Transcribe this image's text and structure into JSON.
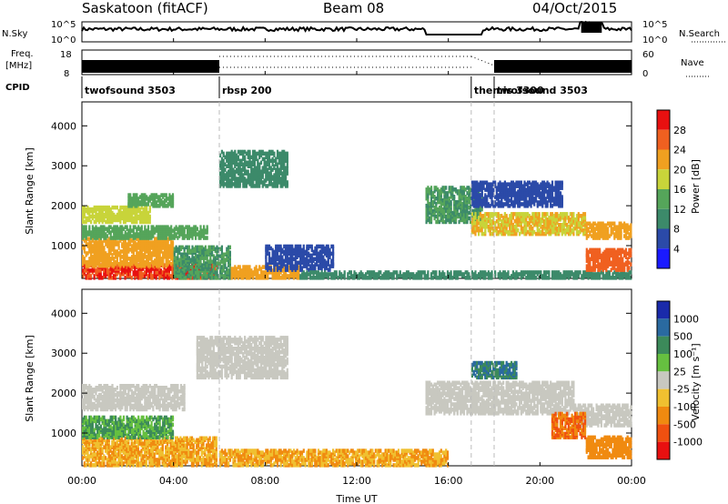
{
  "header": {
    "station": "Saskatoon (fitACF)",
    "beam": "Beam 08",
    "date": "04/Oct/2015"
  },
  "panels": {
    "nsky": {
      "label": "N.Sky",
      "right_label": "N.Search",
      "ticks_left": [
        "10^5",
        "10^0"
      ],
      "ticks_right": [
        "10^5",
        "10^0"
      ]
    },
    "freq": {
      "label_top": "Freq.",
      "label_bottom": "[MHz]",
      "right_label": "Nave",
      "ticks_left": [
        "18",
        "8"
      ],
      "ticks_right": [
        "60",
        "0"
      ]
    },
    "cpid": {
      "label": "CPID",
      "segments": [
        {
          "name": "twofsound 3503",
          "start_h": 0,
          "end_h": 6
        },
        {
          "name": "rbsp 200",
          "start_h": 6,
          "end_h": 17
        },
        {
          "name": "themis 3300",
          "start_h": 17,
          "end_h": 18
        },
        {
          "name": "twofsound 3503",
          "start_h": 18,
          "end_h": 24
        }
      ]
    }
  },
  "x_axis": {
    "label": "Time UT",
    "ticks": [
      "00:00",
      "04:00",
      "08:00",
      "12:00",
      "16:00",
      "20:00",
      "00:00"
    ]
  },
  "y_axis": {
    "label": "Slant Range [km]",
    "ticks": [
      "1000",
      "2000",
      "3000",
      "4000"
    ]
  },
  "power_scale": {
    "label": "Power [dB]",
    "ticks": [
      "4",
      "8",
      "12",
      "16",
      "20",
      "24",
      "28"
    ],
    "colors": [
      "#1a1aff",
      "#2b4aa8",
      "#3c8a6a",
      "#55a55a",
      "#c8d43a",
      "#f0a020",
      "#f06020",
      "#e81010"
    ]
  },
  "velocity_scale": {
    "label": "Velocity [m s⁻¹]",
    "ticks": [
      "1000",
      "500",
      "100",
      "25",
      "-25",
      "-100",
      "-500",
      "-1000"
    ],
    "colors": [
      "#1a2aaa",
      "#2a6aa0",
      "#3c8a5a",
      "#66c040",
      "#c8c8c0",
      "#f0c030",
      "#f08a10",
      "#f05010",
      "#e81010"
    ]
  },
  "chart_data": [
    {
      "type": "heatmap",
      "title": "Power",
      "x_range_h": [
        0,
        24
      ],
      "y_range_km": [
        180,
        4600
      ],
      "colorbar_range_db": [
        0,
        32
      ],
      "regions": [
        {
          "t0": 0.0,
          "t1": 5.9,
          "r0": 200,
          "r1": 550,
          "value": 28
        },
        {
          "t0": 0.0,
          "t1": 4.0,
          "r0": 500,
          "r1": 1200,
          "value": 22
        },
        {
          "t0": 0.0,
          "t1": 5.5,
          "r0": 1200,
          "r1": 1500,
          "value": 14
        },
        {
          "t0": 0.0,
          "t1": 3.0,
          "r0": 1600,
          "r1": 2000,
          "value": 18
        },
        {
          "t0": 2.0,
          "t1": 4.0,
          "r0": 2000,
          "r1": 2300,
          "value": 14
        },
        {
          "t0": 4.0,
          "t1": 6.5,
          "r0": 200,
          "r1": 1000,
          "value": 12
        },
        {
          "t0": 6.0,
          "t1": 9.0,
          "r0": 2500,
          "r1": 3400,
          "value": 10
        },
        {
          "t0": 6.5,
          "t1": 9.5,
          "r0": 200,
          "r1": 500,
          "value": 22
        },
        {
          "t0": 8.0,
          "t1": 11.0,
          "r0": 400,
          "r1": 1000,
          "value": 6
        },
        {
          "t0": 9.5,
          "t1": 24.0,
          "r0": 200,
          "r1": 380,
          "value": 10
        },
        {
          "t0": 15.0,
          "t1": 17.5,
          "r0": 1600,
          "r1": 2500,
          "value": 12
        },
        {
          "t0": 17.0,
          "t1": 22.0,
          "r0": 1300,
          "r1": 1800,
          "value": 20
        },
        {
          "t0": 22.0,
          "t1": 24.0,
          "r0": 1200,
          "r1": 1600,
          "value": 22
        },
        {
          "t0": 22.0,
          "t1": 24.0,
          "r0": 400,
          "r1": 900,
          "value": 26
        },
        {
          "t0": 17.0,
          "t1": 21.0,
          "r0": 2000,
          "r1": 2600,
          "value": 6
        }
      ]
    },
    {
      "type": "heatmap",
      "title": "Velocity",
      "x_range_h": [
        0,
        24
      ],
      "y_range_km": [
        180,
        4600
      ],
      "colorbar_range_ms": [
        -1000,
        1000
      ],
      "regions": [
        {
          "t0": 0.0,
          "t1": 5.9,
          "r0": 200,
          "r1": 900,
          "value": -100
        },
        {
          "t0": 0.0,
          "t1": 4.0,
          "r0": 900,
          "r1": 1400,
          "value": 100
        },
        {
          "t0": 0.0,
          "t1": 4.5,
          "r0": 1600,
          "r1": 2200,
          "value": 0
        },
        {
          "t0": 5.0,
          "t1": 9.0,
          "r0": 2400,
          "r1": 3400,
          "value": 0
        },
        {
          "t0": 6.0,
          "t1": 16.0,
          "r0": 200,
          "r1": 600,
          "value": -100
        },
        {
          "t0": 15.0,
          "t1": 21.5,
          "r0": 1500,
          "r1": 2300,
          "value": 0
        },
        {
          "t0": 21.5,
          "t1": 24.0,
          "r0": 1200,
          "r1": 1700,
          "value": 0
        },
        {
          "t0": 22.0,
          "t1": 24.0,
          "r0": 400,
          "r1": 900,
          "value": -200
        },
        {
          "t0": 20.5,
          "t1": 22.0,
          "r0": 900,
          "r1": 1500,
          "value": -500
        },
        {
          "t0": 17.0,
          "t1": 19.0,
          "r0": 2400,
          "r1": 2800,
          "value": 500
        }
      ]
    }
  ]
}
